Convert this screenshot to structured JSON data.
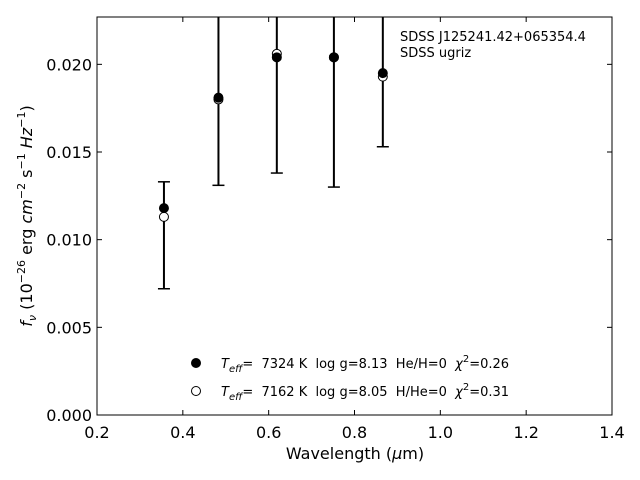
{
  "chart_data": {
    "type": "scatter",
    "annotation": [
      "SDSS J125241.42+065354.4",
      "SDSS ugriz"
    ],
    "xlabel": {
      "main": "Wavelength (",
      "mu": "μ",
      "unit": "m)"
    },
    "ylabel": {
      "f": "f",
      "f_sub": "ν",
      "open": " (10",
      "exp1": "−26",
      "mid1": " erg ",
      "cm": "cm",
      "exp2": "−2",
      "s": " s",
      "exp3": "−1",
      "hz": " Hz",
      "exp4": "−1",
      "close": ")"
    },
    "xlim": [
      0.2,
      1.4
    ],
    "ylim": [
      0.0,
      0.0227
    ],
    "xticks": [
      "0.2",
      "0.4",
      "0.6",
      "0.8",
      "1.0",
      "1.2",
      "1.4"
    ],
    "yticks": [
      "0.000",
      "0.005",
      "0.010",
      "0.015",
      "0.020"
    ],
    "observed": {
      "x": [
        0.356,
        0.483,
        0.619,
        0.752,
        0.866
      ],
      "y": [
        0.0113,
        0.018,
        0.0206,
        0.0204,
        0.0193
      ],
      "err_lo": [
        0.0072,
        0.0131,
        0.0138,
        0.013,
        0.0153
      ],
      "err_hi": [
        0.0133,
        0.024,
        0.024,
        0.024,
        0.024
      ]
    },
    "series": [
      {
        "legend": {
          "T": "T",
          "T_sub": "eff",
          "text": "=  7324 K  log g=8.13  He/H=0  ",
          "chi": "χ",
          "chi_sup": "2",
          "chi_val": "=0.26"
        },
        "marker": "filled",
        "x": [
          0.356,
          0.483,
          0.619,
          0.752,
          0.866
        ],
        "y": [
          0.0118,
          0.0181,
          0.0204,
          0.0204,
          0.0195
        ]
      },
      {
        "legend": {
          "T": "T",
          "T_sub": "eff",
          "text": "=  7162 K  log g=8.05  H/He=0  ",
          "chi": "χ",
          "chi_sup": "2",
          "chi_val": "=0.31"
        },
        "marker": "open",
        "x": [
          0.356,
          0.483,
          0.619,
          0.752,
          0.866
        ],
        "y": [
          0.0113,
          0.018,
          0.0206,
          0.0204,
          0.0193
        ]
      }
    ],
    "colors": {
      "marker": "#000000",
      "background": "#ffffff"
    }
  }
}
